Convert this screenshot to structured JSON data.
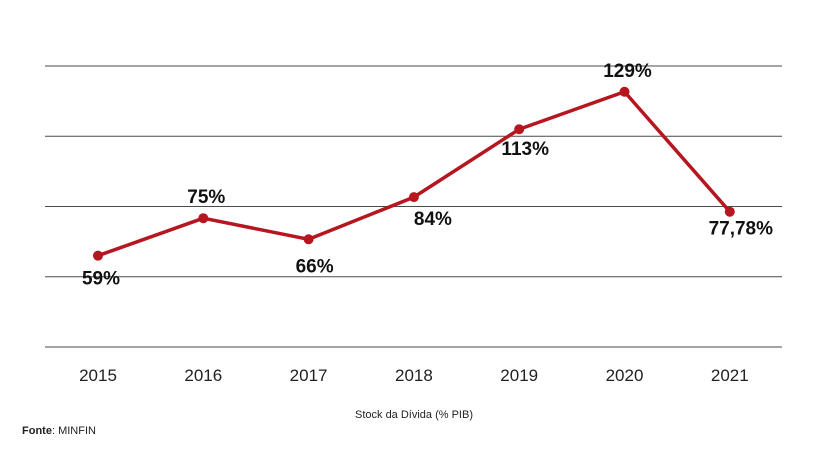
{
  "chart_data": {
    "type": "line",
    "categories": [
      "2015",
      "2016",
      "2017",
      "2018",
      "2019",
      "2020",
      "2021"
    ],
    "values": [
      59,
      75,
      66,
      84,
      113,
      129,
      77.78
    ],
    "data_labels": [
      "59%",
      "75%",
      "66%",
      "84%",
      "113%",
      "129%",
      "77,78%"
    ],
    "xlabel": "Stock da Dívida (% PIB)",
    "ylabel": "",
    "ylim": [
      20,
      140
    ],
    "grid": true,
    "line_color": "#b5161f"
  },
  "source": {
    "label": "Fonte",
    "separator": ":",
    "value": " MINFIN"
  }
}
